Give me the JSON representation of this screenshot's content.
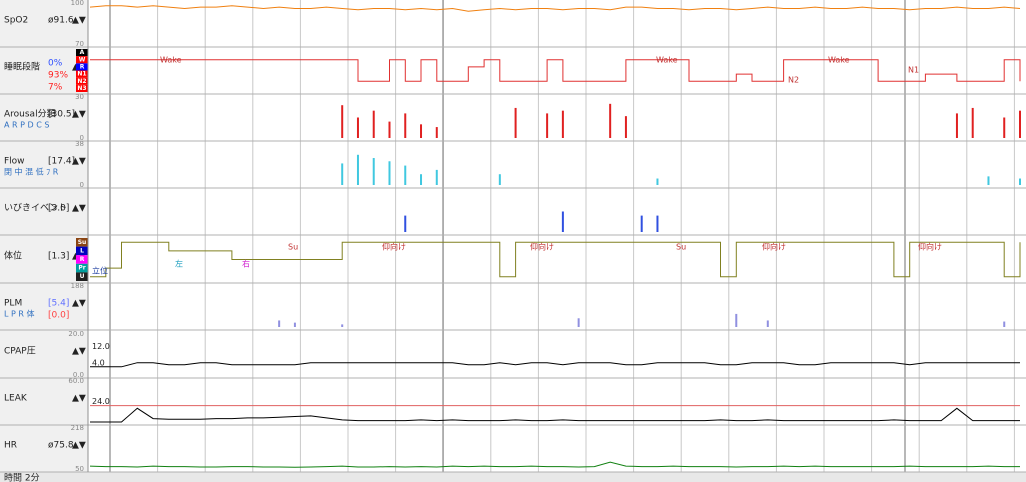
{
  "arrows": "▲▼",
  "time_label": "時間 2分",
  "stages": [
    {
      "label": "A",
      "color": "#000000"
    },
    {
      "label": "W",
      "color": "#ff0000"
    },
    {
      "label": "R",
      "color": "#0000ff"
    },
    {
      "label": "N1",
      "color": "#ff0000"
    },
    {
      "label": "N2",
      "color": "#ff0000"
    },
    {
      "label": "N3",
      "color": "#ff0000"
    }
  ],
  "stage_percents": [
    {
      "label": "0%",
      "color": "#3050ff"
    },
    {
      "label": "93%",
      "color": "#ff2020"
    },
    {
      "label": "7%",
      "color": "#ff2020"
    }
  ],
  "positions": [
    {
      "label": "Su",
      "color": "#8b4513"
    },
    {
      "label": "L",
      "color": "#0000c0"
    },
    {
      "label": "R",
      "color": "#ff00ff"
    },
    {
      "label": "Pr",
      "color": "#00a0a0"
    },
    {
      "label": "U",
      "color": "#202020"
    }
  ],
  "stage_annotations": [
    "Wake",
    "N2",
    "Wake",
    "Wake",
    "N1"
  ],
  "position_annotations": [
    "Su",
    "仰向け",
    "仰向け",
    "Su",
    "仰向け",
    "仰向け",
    "左",
    "右",
    "立位"
  ],
  "panels": [
    {
      "label": "SpO2",
      "value_label": "ø91.6",
      "type": "line",
      "color": "#f08010",
      "ylim": [
        70,
        100
      ],
      "yticks": [
        70,
        100
      ],
      "values": [
        97,
        98,
        98,
        97,
        98,
        97,
        96,
        97,
        97,
        98,
        97,
        96,
        97,
        96,
        96,
        97,
        96,
        95,
        96,
        96,
        95,
        96,
        95,
        96,
        94,
        95,
        96,
        95,
        96,
        96,
        95,
        96,
        96,
        95,
        97,
        97,
        96,
        96,
        95,
        96,
        96,
        95,
        96,
        97,
        96,
        96,
        97,
        96,
        96,
        97,
        96,
        96,
        95,
        96,
        96,
        97,
        96,
        96,
        97,
        96
      ]
    },
    {
      "label": "睡眠段階",
      "type": "stage",
      "color": "#e03030",
      "values": [
        1,
        1,
        1,
        1,
        1,
        1,
        1,
        1,
        1,
        1,
        1,
        1,
        1,
        1,
        1,
        1,
        1,
        4,
        4,
        1,
        4,
        1,
        4,
        4,
        2,
        1,
        4,
        4,
        4,
        1,
        4,
        4,
        4,
        4,
        1,
        1,
        1,
        1,
        4,
        4,
        4,
        3,
        4,
        4,
        1,
        1,
        1,
        1,
        1,
        1,
        4,
        4,
        4,
        3,
        3,
        4,
        4,
        4,
        1,
        4
      ]
    },
    {
      "label": "Arousal分類",
      "value_label": "[30.5]",
      "legend": "A R P D C S",
      "type": "bar",
      "color": "#e02020",
      "ylim": [
        0,
        30
      ],
      "yticks": [
        0,
        30
      ],
      "values": [
        0,
        0,
        0,
        0,
        0,
        0,
        0,
        0,
        0,
        0,
        0,
        0,
        0,
        0,
        0,
        0,
        24,
        15,
        20,
        12,
        18,
        10,
        8,
        0,
        0,
        0,
        0,
        22,
        0,
        18,
        20,
        0,
        0,
        25,
        16,
        0,
        0,
        0,
        0,
        0,
        0,
        0,
        0,
        0,
        0,
        0,
        0,
        0,
        0,
        0,
        0,
        0,
        0,
        0,
        0,
        18,
        22,
        0,
        15,
        20
      ]
    },
    {
      "label": "Flow",
      "value_label": "[17.4]",
      "legend": "閉 中 混 低 ﾌ R",
      "type": "bar",
      "color": "#40c8e0",
      "ylim": [
        0,
        38
      ],
      "yticks": [
        0,
        38
      ],
      "values": [
        0,
        0,
        0,
        0,
        0,
        0,
        0,
        0,
        0,
        0,
        0,
        0,
        0,
        0,
        0,
        0,
        20,
        28,
        25,
        22,
        18,
        10,
        14,
        0,
        0,
        0,
        10,
        0,
        0,
        0,
        0,
        0,
        0,
        0,
        0,
        0,
        6,
        0,
        0,
        0,
        0,
        0,
        0,
        0,
        0,
        0,
        0,
        0,
        0,
        0,
        0,
        0,
        0,
        0,
        0,
        0,
        0,
        8,
        0,
        6
      ]
    },
    {
      "label": "いびきイベント",
      "value_label": "[3.0]",
      "type": "bar",
      "color": "#3050e0",
      "ylim": [
        0,
        1
      ],
      "values": [
        0,
        0,
        0,
        0,
        0,
        0,
        0,
        0,
        0,
        0,
        0,
        0,
        0,
        0,
        0,
        0,
        0,
        0,
        0,
        0,
        0.4,
        0,
        0,
        0,
        0,
        0,
        0,
        0,
        0,
        0,
        0.5,
        0,
        0,
        0,
        0,
        0.4,
        0.4,
        0,
        0,
        0,
        0,
        0,
        0,
        0,
        0,
        0,
        0,
        0,
        0,
        0,
        0,
        0,
        0,
        0,
        0,
        0,
        0,
        0,
        0,
        0
      ]
    },
    {
      "label": "体位",
      "value_label": "[1.3]",
      "type": "position",
      "color": "#808020",
      "values": [
        4,
        3,
        0,
        0,
        0,
        1,
        1,
        1,
        1,
        2,
        2,
        2,
        2,
        2,
        2,
        2,
        0,
        0,
        0,
        0,
        0,
        0,
        0,
        0,
        0,
        0,
        4,
        0,
        0,
        0,
        0,
        0,
        0,
        0,
        0,
        0,
        0,
        0,
        0,
        0,
        4,
        0,
        0,
        0,
        0,
        0,
        0,
        0,
        0,
        0,
        0,
        4,
        0,
        0,
        0,
        0,
        0,
        0,
        4,
        0
      ]
    },
    {
      "label": "PLM",
      "value_label": "[5.4]",
      "value_label2": "[0.0]",
      "legend": "L P R 体",
      "type": "bar",
      "color": "#9090e0",
      "ylim": [
        0,
        188
      ],
      "yticks": [
        188
      ],
      "values": [
        0,
        0,
        0,
        0,
        0,
        0,
        0,
        0,
        0,
        0,
        0,
        0,
        30,
        20,
        0,
        0,
        12,
        0,
        0,
        0,
        0,
        0,
        0,
        0,
        0,
        0,
        0,
        0,
        0,
        0,
        0,
        40,
        0,
        0,
        0,
        0,
        0,
        0,
        0,
        0,
        0,
        60,
        0,
        30,
        0,
        0,
        0,
        0,
        0,
        0,
        0,
        0,
        0,
        0,
        0,
        0,
        0,
        0,
        25,
        0
      ]
    },
    {
      "label": "CPAP圧",
      "type": "line",
      "color": "#000000",
      "ylim": [
        0,
        20
      ],
      "yticks": [
        {
          "value": 0,
          "label": "0.0"
        },
        {
          "value": 20,
          "label": "20.0"
        }
      ],
      "ref_lines": [
        {
          "value": 12,
          "label": "12.0"
        },
        {
          "value": 4,
          "label": "4.0"
        }
      ],
      "values": [
        4,
        4,
        4,
        6,
        6,
        5,
        5,
        6,
        6,
        5,
        5,
        5,
        5,
        5,
        6,
        6,
        6,
        6,
        6,
        6,
        6,
        6,
        6,
        6,
        5,
        5,
        6,
        5,
        6,
        6,
        5,
        6,
        6,
        6,
        5,
        5,
        6,
        6,
        6,
        6,
        5,
        5,
        6,
        6,
        6,
        5,
        5,
        6,
        6,
        6,
        6,
        6,
        5,
        6,
        6,
        6,
        6,
        6,
        6,
        6
      ]
    },
    {
      "label": "LEAK",
      "type": "line",
      "color": "#000000",
      "ylim": [
        0,
        60
      ],
      "yticks": [
        {
          "value": 60,
          "label": "60.0"
        }
      ],
      "ref_lines": [
        {
          "value": 24,
          "label": "24.0"
        }
      ],
      "values": [
        0,
        0,
        0,
        20,
        5,
        4,
        4,
        4,
        5,
        5,
        6,
        6,
        7,
        8,
        9,
        6,
        3,
        2,
        2,
        2,
        2,
        3,
        2,
        3,
        2,
        2,
        2,
        3,
        2,
        2,
        3,
        2,
        2,
        2,
        2,
        2,
        2,
        2,
        2,
        2,
        3,
        2,
        2,
        3,
        2,
        2,
        2,
        2,
        2,
        2,
        2,
        3,
        2,
        2,
        2,
        20,
        2,
        2,
        2,
        2
      ]
    },
    {
      "label": "HR",
      "value_label": "ø75.8",
      "type": "line",
      "color": "#108010",
      "ylim": [
        50,
        218
      ],
      "yticks": [
        50,
        218
      ],
      "values": [
        62,
        60,
        60,
        58,
        62,
        60,
        60,
        58,
        58,
        60,
        60,
        58,
        58,
        57,
        58,
        60,
        62,
        58,
        58,
        60,
        58,
        60,
        58,
        62,
        60,
        62,
        60,
        60,
        62,
        60,
        60,
        58,
        60,
        78,
        62,
        60,
        60,
        62,
        60,
        60,
        60,
        58,
        60,
        60,
        62,
        60,
        62,
        60,
        60,
        60,
        60,
        60,
        62,
        60,
        60,
        60,
        60,
        62,
        60,
        60
      ]
    }
  ]
}
